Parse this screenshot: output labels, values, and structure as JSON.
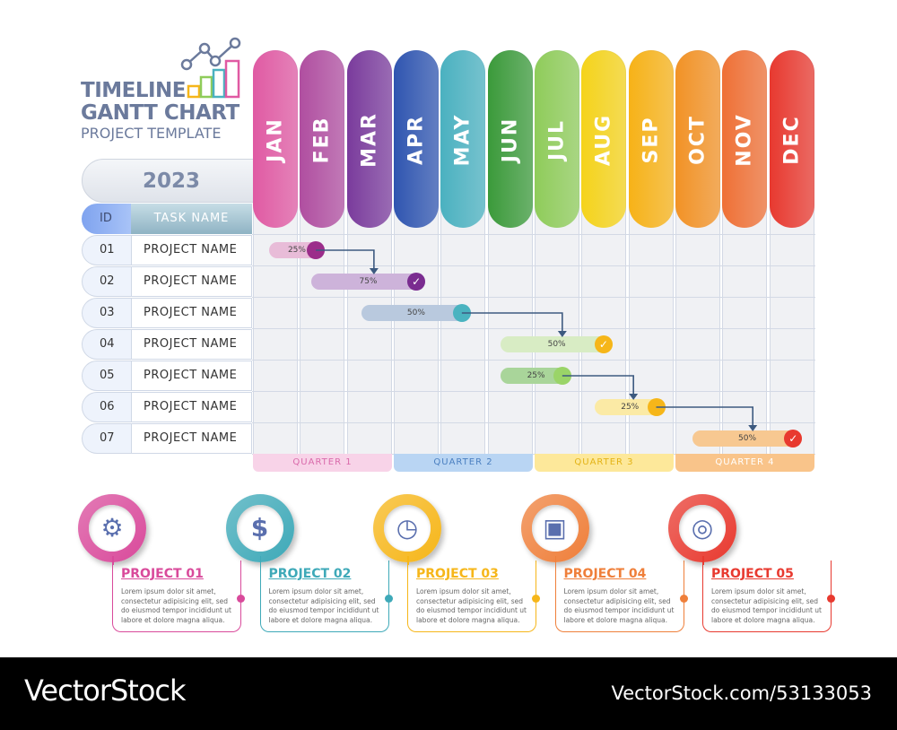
{
  "header": {
    "title_line1": "TIMELINE",
    "title_line2": "GANTT CHART",
    "subtitle": "PROJECT TEMPLATE",
    "year": "2023"
  },
  "table": {
    "id_header": "ID",
    "task_header": "TASK NAME",
    "rows": [
      {
        "id": "01",
        "name": "PROJECT NAME"
      },
      {
        "id": "02",
        "name": "PROJECT NAME"
      },
      {
        "id": "03",
        "name": "PROJECT NAME"
      },
      {
        "id": "04",
        "name": "PROJECT NAME"
      },
      {
        "id": "05",
        "name": "PROJECT NAME"
      },
      {
        "id": "06",
        "name": "PROJECT NAME"
      },
      {
        "id": "07",
        "name": "PROJECT NAME"
      }
    ]
  },
  "months": [
    {
      "label": "JAN",
      "color": "#e05aa3"
    },
    {
      "label": "FEB",
      "color": "#b04ea0"
    },
    {
      "label": "MAR",
      "color": "#7a3b9c"
    },
    {
      "label": "APR",
      "color": "#2f55b0"
    },
    {
      "label": "MAY",
      "color": "#4ab1c0"
    },
    {
      "label": "JUN",
      "color": "#3b9a3a"
    },
    {
      "label": "JUL",
      "color": "#8fcc5a"
    },
    {
      "label": "AUG",
      "color": "#f5d31a"
    },
    {
      "label": "SEP",
      "color": "#f7b217"
    },
    {
      "label": "OCT",
      "color": "#f29225"
    },
    {
      "label": "NOV",
      "color": "#ef7035"
    },
    {
      "label": "DEC",
      "color": "#e8392f"
    }
  ],
  "quarters": [
    {
      "label": "QUARTER 1",
      "bg": "#f8d3e8",
      "fg": "#d96aab"
    },
    {
      "label": "QUARTER 2",
      "bg": "#b9d5f3",
      "fg": "#4a7fc0"
    },
    {
      "label": "QUARTER 3",
      "bg": "#fde89a",
      "fg": "#e3b316"
    },
    {
      "label": "QUARTER 4",
      "bg": "#f9c48a",
      "fg": "#fff"
    }
  ],
  "chart_data": {
    "type": "gantt",
    "unit": "month",
    "tasks": [
      {
        "start": 0.36,
        "end": 1.55,
        "progress": "25%",
        "bar": "#e8bcd8",
        "marker": "circle",
        "marker_color": "#9b2d8a",
        "depends_next": true
      },
      {
        "start": 1.26,
        "end": 3.69,
        "progress": "75%",
        "bar": "#cdb3da",
        "marker": "check",
        "marker_color": "#7a2c90",
        "depends_next": false
      },
      {
        "start": 2.33,
        "end": 4.66,
        "progress": "50%",
        "bar": "#b9c9de",
        "marker": "circle",
        "marker_color": "#4ab3c0",
        "depends_next": true
      },
      {
        "start": 5.3,
        "end": 7.68,
        "progress": "50%",
        "bar": "#d8ecc4",
        "marker": "check",
        "marker_color": "#f6b619",
        "depends_next": false
      },
      {
        "start": 5.3,
        "end": 6.8,
        "progress": "25%",
        "bar": "#a9d59a",
        "marker": "circle",
        "marker_color": "#9ad468",
        "depends_next": true
      },
      {
        "start": 7.3,
        "end": 8.8,
        "progress": "25%",
        "bar": "#fbeaa5",
        "marker": "circle",
        "marker_color": "#f6b619",
        "depends_next": true
      },
      {
        "start": 9.38,
        "end": 11.72,
        "progress": "50%",
        "bar": "#f7c891",
        "marker": "check",
        "marker_color": "#e8392f",
        "depends_next": false
      }
    ]
  },
  "projects": [
    {
      "title": "PROJECT 01",
      "color": "#d94a9b",
      "icon": "hand-gear-icon",
      "glyph": "⚙",
      "desc": "Lorem ipsum dolor sit amet, consectetur adipisicing elit, sed do eiusmod tempor incididunt ut labore et dolore magna aliqua."
    },
    {
      "title": "PROJECT 02",
      "color": "#3ea9b8",
      "icon": "head-dollar-icon",
      "glyph": "$",
      "desc": "Lorem ipsum dolor sit amet, consectetur adipisicing elit, sed do eiusmod tempor incididunt ut labore et dolore magna aliqua."
    },
    {
      "title": "PROJECT 03",
      "color": "#f6b619",
      "icon": "clock-icon",
      "glyph": "◷",
      "desc": "Lorem ipsum dolor sit amet, consectetur adipisicing elit, sed do eiusmod tempor incididunt ut labore et dolore magna aliqua."
    },
    {
      "title": "PROJECT 04",
      "color": "#ef7f3a",
      "icon": "briefcase-icon",
      "glyph": "▣",
      "desc": "Lorem ipsum dolor sit amet, consectetur adipisicing elit, sed do eiusmod tempor incididunt ut labore et dolore magna aliqua."
    },
    {
      "title": "PROJECT 05",
      "color": "#e8392f",
      "icon": "target-icon",
      "glyph": "◎",
      "desc": "Lorem ipsum dolor sit amet, consectetur adipisicing elit, sed do eiusmod tempor incididunt ut labore et dolore magna aliqua."
    }
  ],
  "footer": {
    "brand": "VectorStock",
    "id": "VectorStock.com/53133053"
  },
  "icon_color": "#5a6fae"
}
